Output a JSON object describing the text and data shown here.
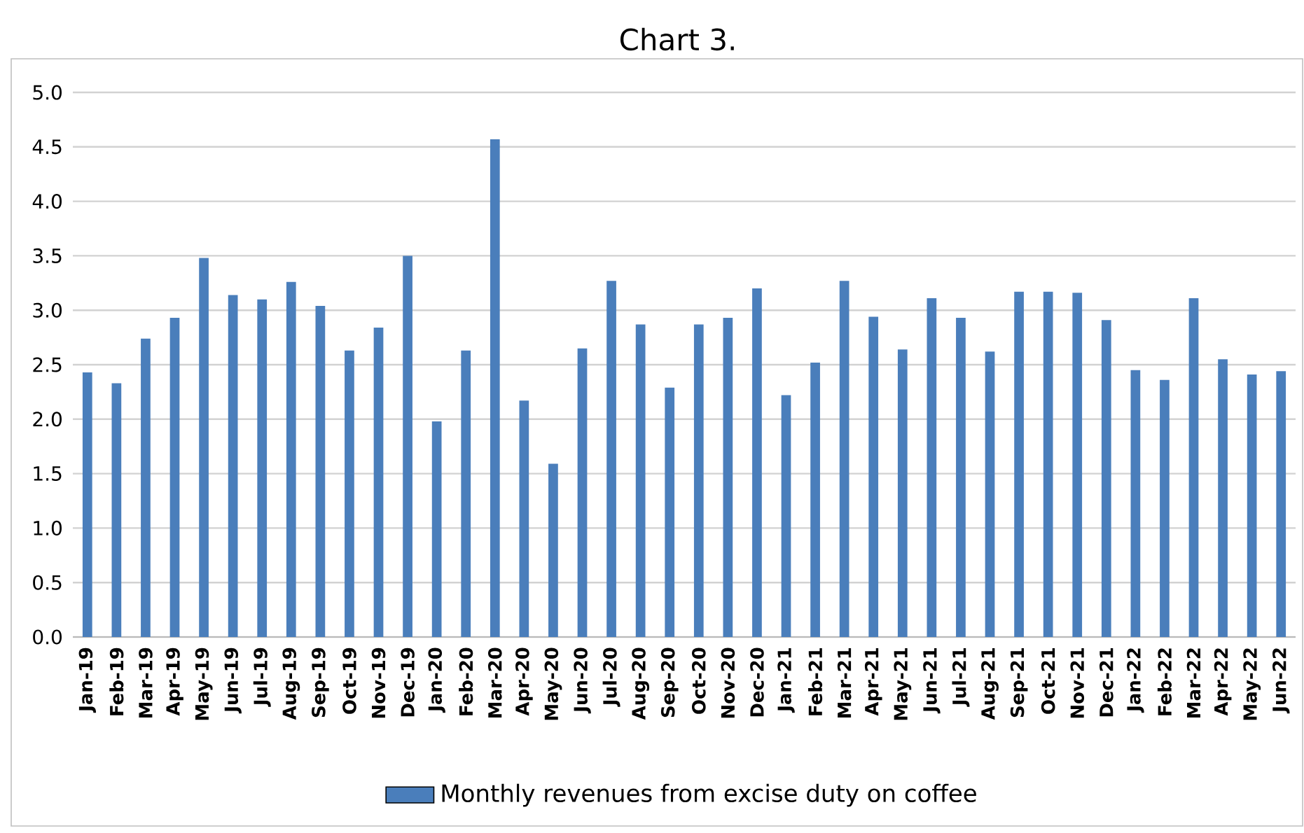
{
  "chart_data": {
    "type": "bar",
    "title": "Chart 3.",
    "categories": [
      "Jan-19",
      "Feb-19",
      "Mar-19",
      "Apr-19",
      "May-19",
      "Jun-19",
      "Jul-19",
      "Aug-19",
      "Sep-19",
      "Oct-19",
      "Nov-19",
      "Dec-19",
      "Jan-20",
      "Feb-20",
      "Mar-20",
      "Apr-20",
      "May-20",
      "Jun-20",
      "Jul-20",
      "Aug-20",
      "Sep-20",
      "Oct-20",
      "Nov-20",
      "Dec-20",
      "Jan-21",
      "Feb-21",
      "Mar-21",
      "Apr-21",
      "May-21",
      "Jun-21",
      "Jul-21",
      "Aug-21",
      "Sep-21",
      "Oct-21",
      "Nov-21",
      "Dec-21",
      "Jan-22",
      "Feb-22",
      "Mar-22",
      "Apr-22",
      "May-22",
      "Jun-22"
    ],
    "series": [
      {
        "name": "Monthly revenues from excise duty on coffee",
        "color": "#4a7ebb",
        "values": [
          2.43,
          2.33,
          2.74,
          2.93,
          3.48,
          3.14,
          3.1,
          3.26,
          3.04,
          2.63,
          2.84,
          3.5,
          1.98,
          2.63,
          4.57,
          2.17,
          1.59,
          2.65,
          3.27,
          2.87,
          2.29,
          2.87,
          2.93,
          3.2,
          2.22,
          2.52,
          3.27,
          2.94,
          2.64,
          3.11,
          2.93,
          2.62,
          3.17,
          3.17,
          3.16,
          2.91,
          2.45,
          2.36,
          3.11,
          2.55,
          2.41,
          2.44
        ]
      }
    ],
    "ylim": [
      0,
      5
    ],
    "yticks": [
      {
        "value": 0,
        "label": "0.0"
      },
      {
        "value": 0.5,
        "label": "0.5"
      },
      {
        "value": 1,
        "label": "1.0"
      },
      {
        "value": 1.5,
        "label": "1.5"
      },
      {
        "value": 2,
        "label": "2.0"
      },
      {
        "value": 2.5,
        "label": "2.5"
      },
      {
        "value": 3,
        "label": "3.0"
      },
      {
        "value": 3.5,
        "label": "3.5"
      },
      {
        "value": 4,
        "label": "4.0"
      },
      {
        "value": 4.5,
        "label": "4.5"
      },
      {
        "value": 5,
        "label": "5.0"
      }
    ],
    "grid": "y",
    "legend": "bottom"
  }
}
